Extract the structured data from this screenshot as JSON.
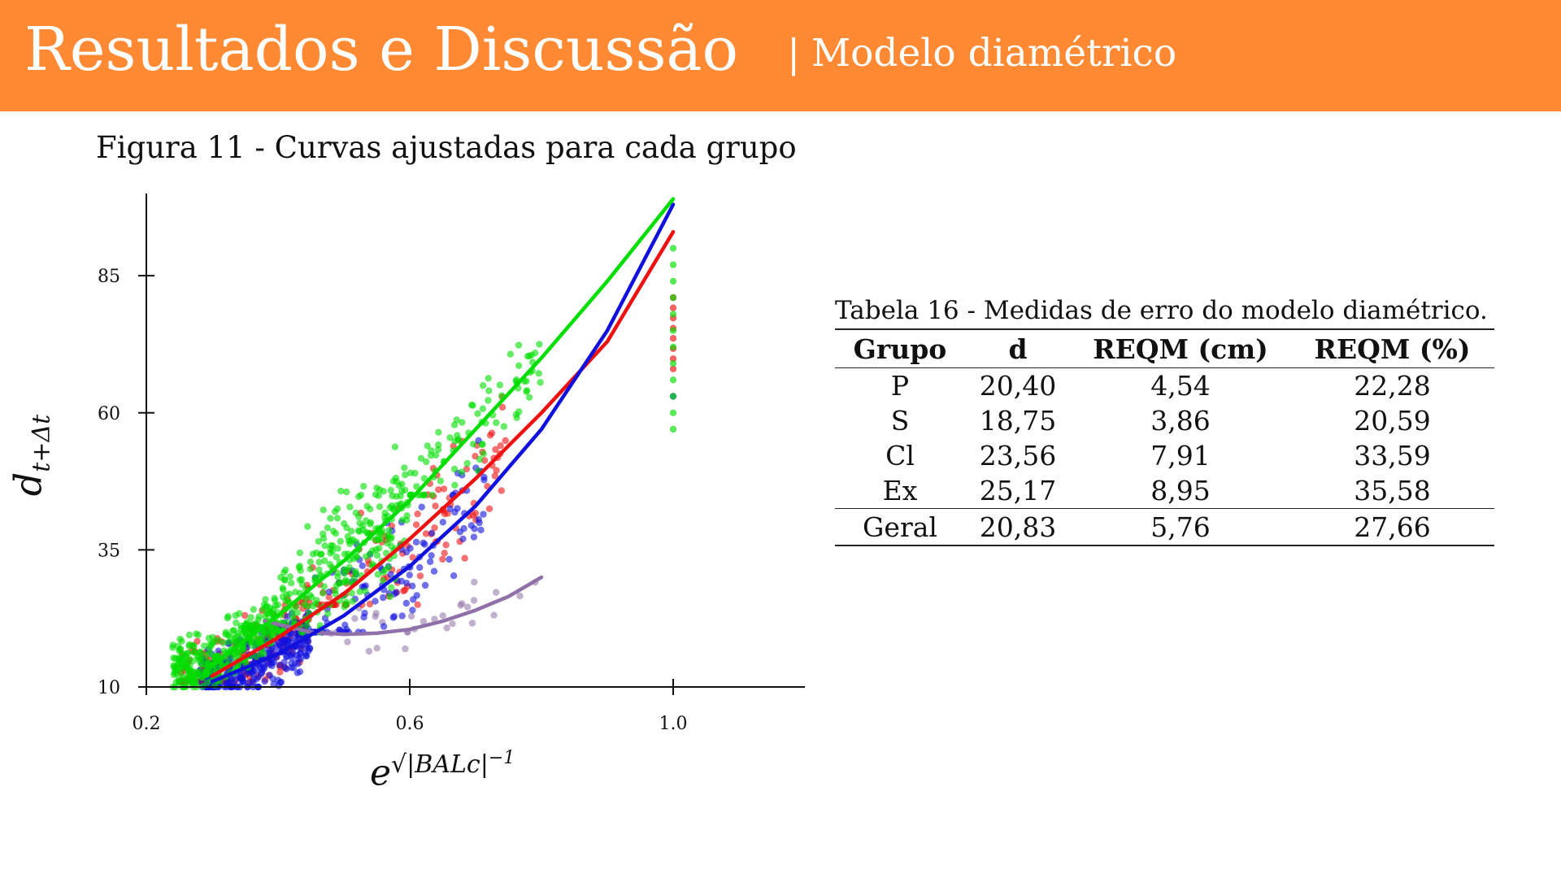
{
  "header": {
    "title": "Resultados e Discussão",
    "separator": "|",
    "subtitle": "Modelo diamétrico",
    "background_color": "#FF8A33"
  },
  "figure": {
    "caption": "Figura 11 - Curvas ajustadas para cada grupo"
  },
  "table": {
    "caption": "Tabela 16 - Medidas de erro do modelo diamétrico.",
    "headers": [
      "Grupo",
      "d",
      "REQM (cm)",
      "REQM (%)"
    ],
    "rows": [
      [
        "P",
        "20,40",
        "4,54",
        "22,28"
      ],
      [
        "S",
        "18,75",
        "3,86",
        "20,59"
      ],
      [
        "Cl",
        "23,56",
        "7,91",
        "33,59"
      ],
      [
        "Ex",
        "25,17",
        "8,95",
        "35,58"
      ]
    ],
    "total_row": [
      "Geral",
      "20,83",
      "5,76",
      "27,66"
    ]
  },
  "chart_data": {
    "type": "scatter",
    "xlabel": "e^{√|BALc|^{-1}}",
    "ylabel": "d_{t+Δt}",
    "xlim": [
      0.2,
      1.2
    ],
    "ylim": [
      10,
      100
    ],
    "xticks": [
      0.2,
      0.6,
      1.0
    ],
    "yticks": [
      10,
      35,
      60,
      85
    ],
    "xtick_labels": [
      "0.2",
      "0.6",
      "1.0"
    ],
    "ytick_labels": [
      "10",
      "35",
      "60",
      "85"
    ],
    "grid": false,
    "legend": "none",
    "series": [
      {
        "color": "#00dd00",
        "curve": [
          [
            0.3,
            14
          ],
          [
            0.4,
            23
          ],
          [
            0.5,
            33
          ],
          [
            0.6,
            44
          ],
          [
            0.7,
            57
          ],
          [
            0.8,
            70
          ],
          [
            0.9,
            84
          ],
          [
            1.0,
            99
          ]
        ],
        "points_summary": {
          "clusters": [
            {
              "x_range": [
                0.24,
                0.4
              ],
              "y_range": [
                10,
                32
              ],
              "count": 320
            },
            {
              "x_range": [
                0.4,
                0.6
              ],
              "y_range": [
                20,
                67
              ],
              "count": 260
            },
            {
              "x_range": [
                0.6,
                0.8
              ],
              "y_range": [
                45,
                82
              ],
              "count": 90
            }
          ],
          "column_at_1": {
            "x": 1.0,
            "y_range": [
              57,
              90
            ]
          }
        }
      },
      {
        "color": "#ee1111",
        "curve": [
          [
            0.3,
            12
          ],
          [
            0.4,
            19
          ],
          [
            0.5,
            27
          ],
          [
            0.6,
            37
          ],
          [
            0.7,
            48
          ],
          [
            0.8,
            60
          ],
          [
            0.9,
            73
          ],
          [
            1.0,
            93
          ]
        ],
        "points_summary": {
          "clusters": [
            {
              "x_range": [
                0.25,
                0.45
              ],
              "y_range": [
                11,
                38
              ],
              "count": 200
            },
            {
              "x_range": [
                0.45,
                0.75
              ],
              "y_range": [
                25,
                70
              ],
              "count": 110
            }
          ],
          "column_at_1": {
            "x": 1.0,
            "y_range": [
              68,
              81
            ]
          }
        }
      },
      {
        "color": "#1111dd",
        "curve": [
          [
            0.3,
            11
          ],
          [
            0.4,
            16
          ],
          [
            0.5,
            23
          ],
          [
            0.6,
            32
          ],
          [
            0.7,
            43
          ],
          [
            0.8,
            57
          ],
          [
            0.9,
            75
          ],
          [
            1.0,
            98
          ]
        ],
        "points_summary": {
          "clusters": [
            {
              "x_range": [
                0.28,
                0.45
              ],
              "y_range": [
                10,
                32
              ],
              "count": 320
            },
            {
              "x_range": [
                0.45,
                0.72
              ],
              "y_range": [
                20,
                68
              ],
              "count": 120
            }
          ],
          "column_at_1": {
            "x": 1.0,
            "y_range": [
              63,
              64
            ]
          }
        }
      },
      {
        "color": "#9070a8",
        "curve": [
          [
            0.38,
            22
          ],
          [
            0.45,
            20
          ],
          [
            0.5,
            19.6
          ],
          [
            0.55,
            19.8
          ],
          [
            0.6,
            20.5
          ],
          [
            0.65,
            22
          ],
          [
            0.7,
            24
          ],
          [
            0.75,
            26.5
          ],
          [
            0.8,
            30
          ]
        ],
        "points_summary": {
          "clusters": [
            {
              "x_range": [
                0.45,
                0.8
              ],
              "y_range": [
                10,
                30
              ],
              "count": 30
            }
          ]
        }
      }
    ]
  }
}
